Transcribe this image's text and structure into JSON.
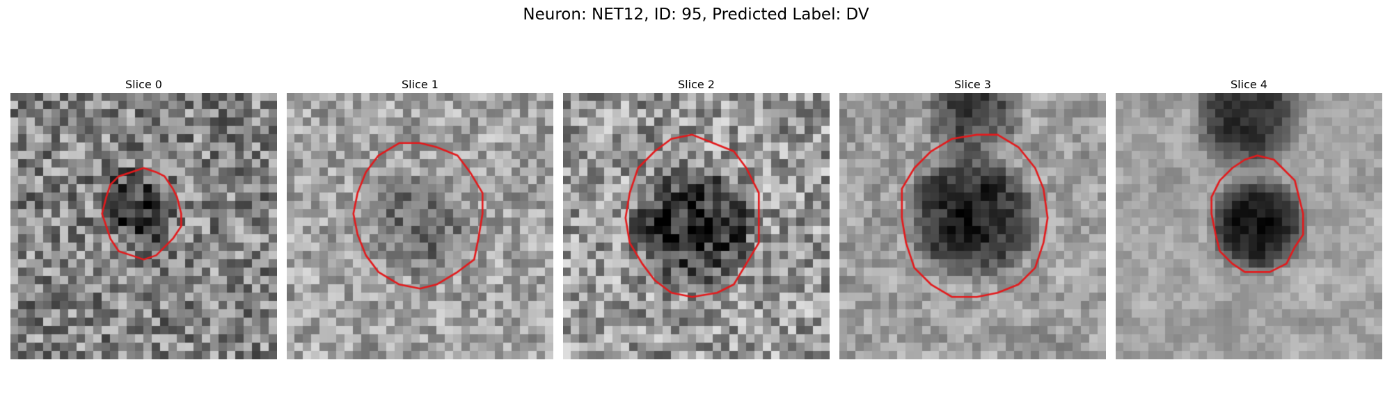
{
  "figure": {
    "title": "Neuron: NET12, ID: 95, Predicted Label: DV",
    "contour_color": "#e31a1c"
  },
  "panels": [
    {
      "title": "Slice 0"
    },
    {
      "title": "Slice 1"
    },
    {
      "title": "Slice 2"
    },
    {
      "title": "Slice 3"
    },
    {
      "title": "Slice 4"
    }
  ]
}
